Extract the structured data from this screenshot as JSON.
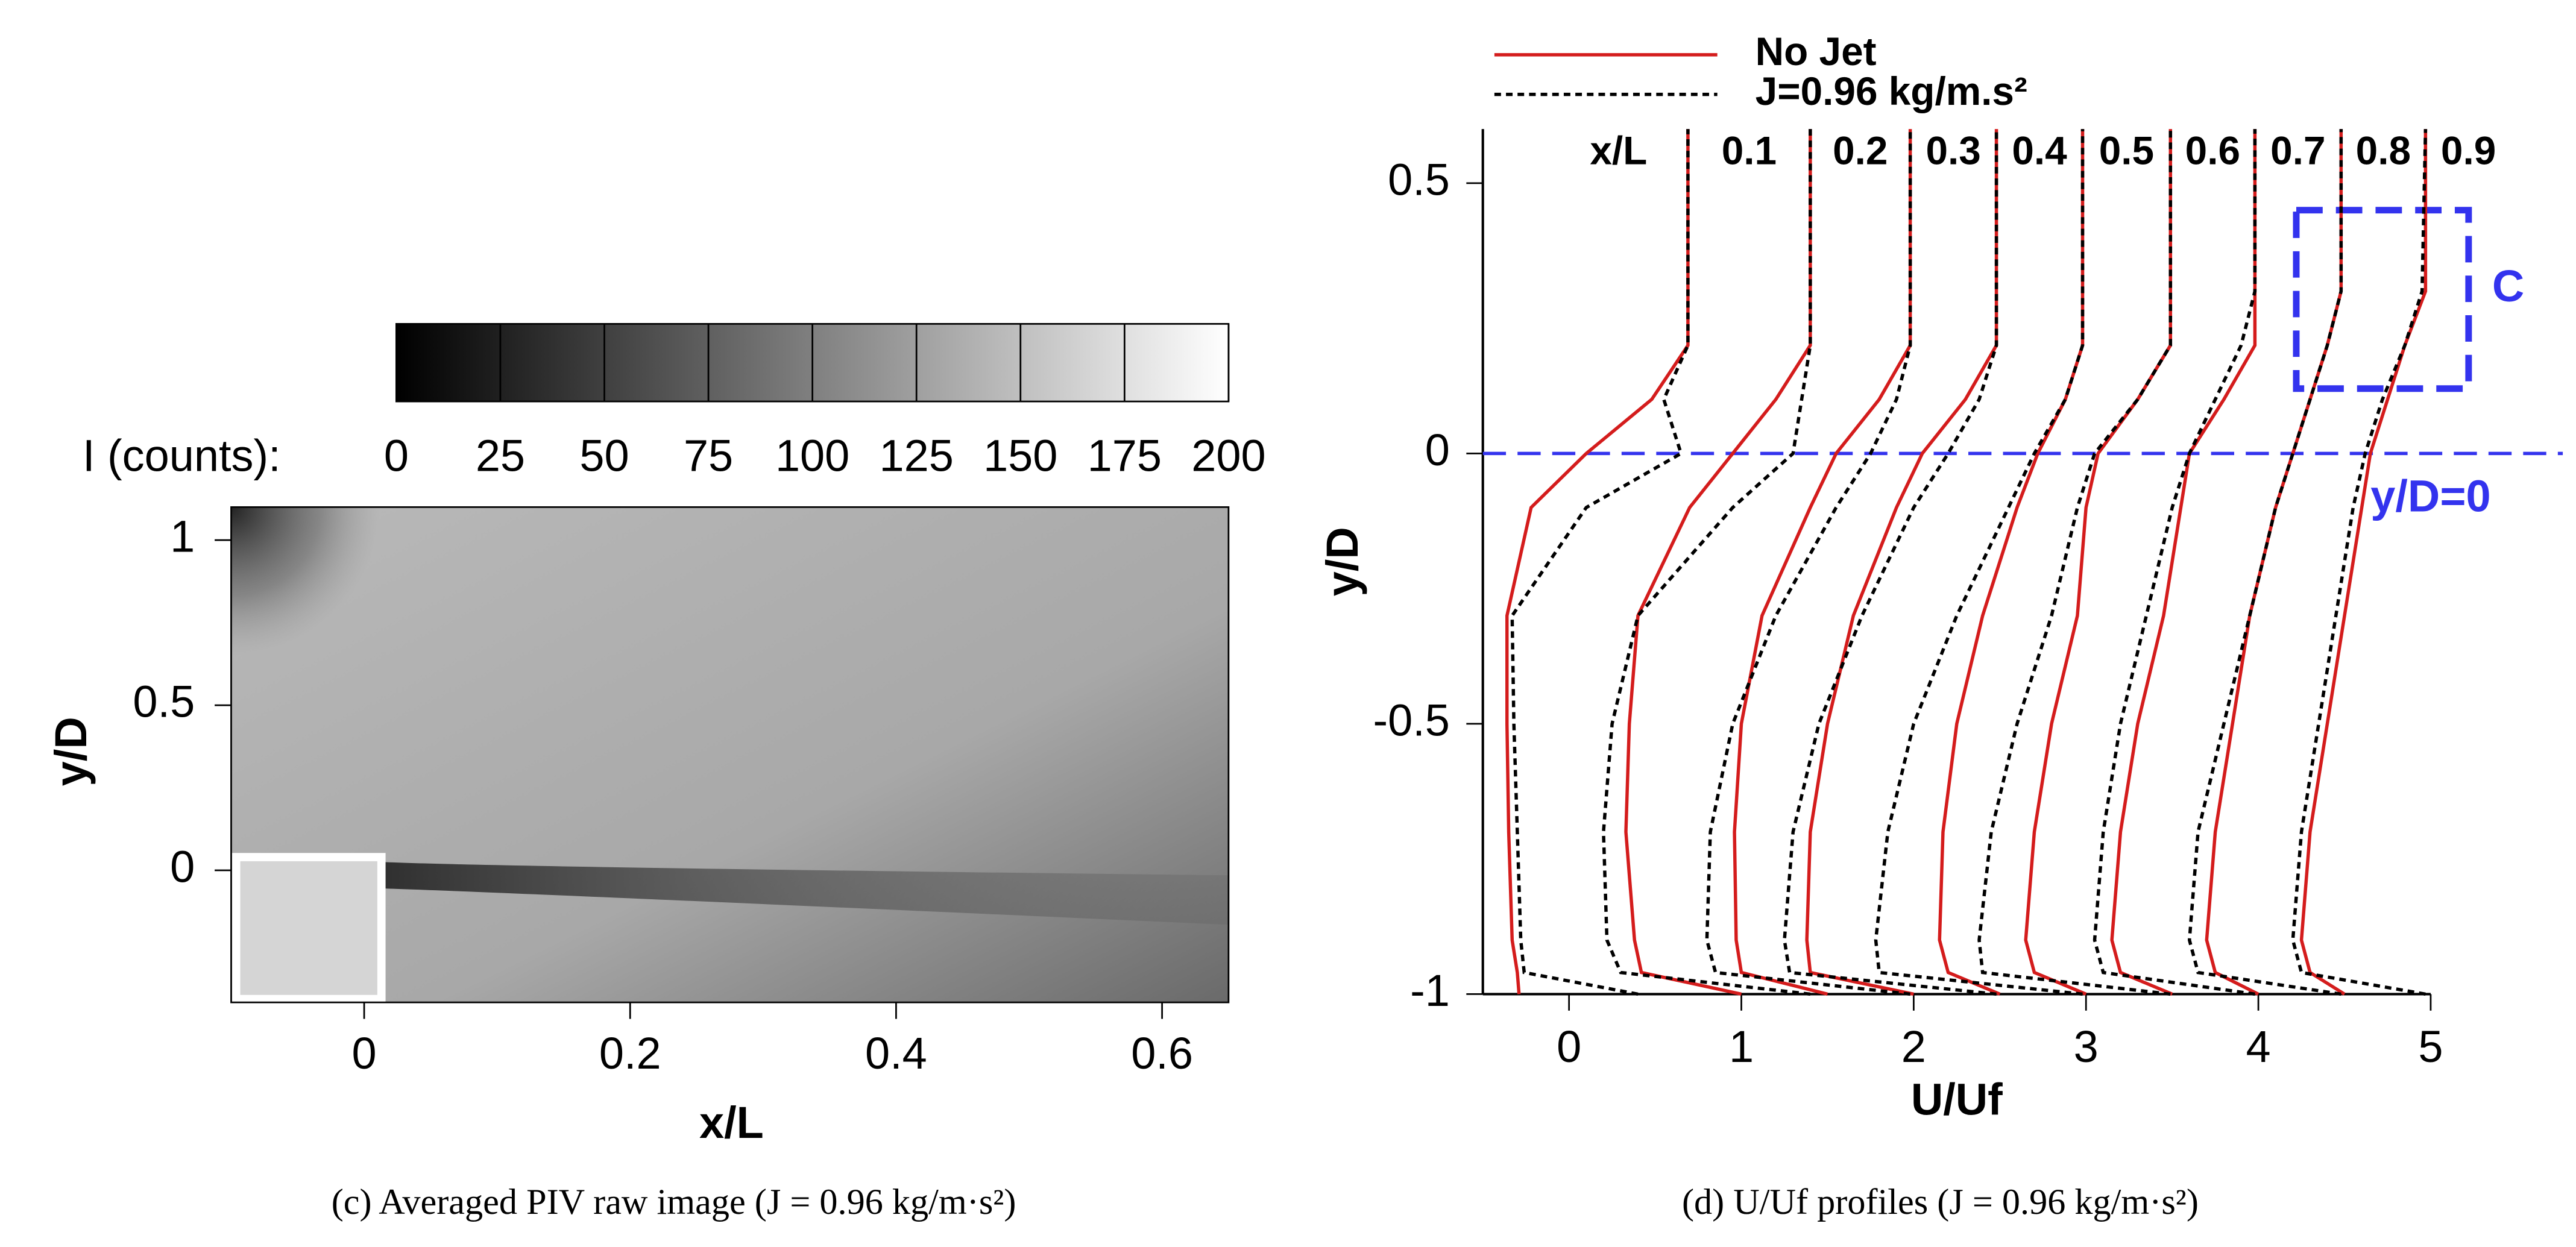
{
  "chart_data": [
    {
      "type": "image",
      "xlabel": "x/L",
      "ylabel": "y/D",
      "xlim": [
        -0.1,
        0.65
      ],
      "ylim": [
        -0.4,
        1.1
      ],
      "xticks": [
        0,
        0.2,
        0.4,
        0.6
      ],
      "yticks": [
        0,
        0.5,
        1
      ],
      "colorbar": {
        "label": "I (counts):",
        "lim": [
          0,
          200
        ],
        "ticks": [
          0,
          25,
          50,
          75,
          100,
          125,
          150,
          175,
          200
        ]
      },
      "caption": "(c) Averaged PIV raw image (J = 0.96  kg/m·s²)"
    },
    {
      "type": "profiles",
      "xlabel": "U/Uf",
      "ylabel": "y/D",
      "xlim": [
        -0.5,
        5
      ],
      "ylim": [
        -1,
        0.6
      ],
      "xticks": [
        0,
        1,
        2,
        3,
        4,
        5
      ],
      "yticks": [
        -1,
        -0.5,
        0,
        0.5
      ],
      "station_title": "x/L",
      "stations": [
        "0.1",
        "0.2",
        "0.3",
        "0.4",
        "0.5",
        "0.6",
        "0.7",
        "0.8",
        "0.9"
      ],
      "y": [
        -1,
        -0.96,
        -0.9,
        -0.7,
        -0.5,
        -0.3,
        -0.1,
        0,
        0.1,
        0.2,
        0.3,
        0.6
      ],
      "series": [
        {
          "name": "No Jet",
          "color": "#d41c1c",
          "dashed": false,
          "profiles": [
            [
              -0.29,
              -0.3,
              -0.33,
              -0.35,
              -0.36,
              -0.36,
              -0.22,
              0.1,
              0.48,
              0.69,
              0.69,
              0.69
            ],
            [
              1.0,
              0.42,
              0.38,
              0.33,
              0.35,
              0.4,
              0.7,
              0.95,
              1.2,
              1.4,
              1.4,
              1.4
            ],
            [
              1.5,
              1.0,
              0.97,
              0.96,
              1.0,
              1.12,
              1.4,
              1.55,
              1.8,
              1.98,
              1.98,
              1.98
            ],
            [
              2.0,
              1.4,
              1.38,
              1.4,
              1.5,
              1.65,
              1.9,
              2.05,
              2.3,
              2.48,
              2.48,
              2.48
            ],
            [
              2.5,
              2.2,
              2.15,
              2.17,
              2.25,
              2.4,
              2.6,
              2.72,
              2.88,
              2.98,
              2.98,
              2.98
            ],
            [
              3.0,
              2.7,
              2.65,
              2.7,
              2.8,
              2.95,
              3.0,
              3.07,
              3.3,
              3.49,
              3.49,
              3.49
            ],
            [
              3.5,
              3.2,
              3.15,
              3.2,
              3.3,
              3.45,
              3.55,
              3.6,
              3.8,
              3.98,
              3.98,
              3.98
            ],
            [
              4.0,
              3.75,
              3.7,
              3.75,
              3.85,
              3.95,
              4.1,
              4.2,
              4.3,
              4.4,
              4.48,
              4.48
            ],
            [
              4.5,
              4.3,
              4.25,
              4.3,
              4.4,
              4.5,
              4.6,
              4.65,
              4.75,
              4.85,
              4.97,
              4.97
            ]
          ]
        },
        {
          "name": "J=0.96 kg/m.s²",
          "color": "#000000",
          "dashed": true,
          "profiles": [
            [
              0.4,
              -0.26,
              -0.28,
              -0.3,
              -0.32,
              -0.33,
              0.1,
              0.65,
              0.55,
              0.69,
              0.69,
              0.69
            ],
            [
              1.4,
              0.3,
              0.22,
              0.2,
              0.25,
              0.4,
              0.95,
              1.3,
              1.35,
              1.4,
              1.4,
              1.4
            ],
            [
              1.98,
              0.85,
              0.8,
              0.82,
              0.95,
              1.2,
              1.55,
              1.75,
              1.9,
              1.98,
              1.98,
              1.98
            ],
            [
              2.48,
              1.28,
              1.25,
              1.3,
              1.45,
              1.7,
              2.0,
              2.2,
              2.38,
              2.48,
              2.48,
              2.48
            ],
            [
              2.98,
              1.8,
              1.78,
              1.85,
              2.0,
              2.25,
              2.55,
              2.7,
              2.88,
              2.98,
              2.98,
              2.98
            ],
            [
              3.49,
              2.4,
              2.38,
              2.45,
              2.6,
              2.8,
              2.95,
              3.05,
              3.3,
              3.49,
              3.49,
              3.49
            ],
            [
              3.98,
              3.1,
              3.05,
              3.1,
              3.2,
              3.35,
              3.5,
              3.6,
              3.75,
              3.9,
              3.98,
              3.98
            ],
            [
              4.48,
              3.65,
              3.6,
              3.65,
              3.8,
              3.95,
              4.1,
              4.2,
              4.3,
              4.4,
              4.48,
              4.48
            ],
            [
              4.97,
              4.25,
              4.2,
              4.25,
              4.35,
              4.45,
              4.55,
              4.62,
              4.72,
              4.85,
              4.95,
              4.97
            ]
          ]
        }
      ],
      "reference_line": {
        "label": "y/D=0",
        "y": 0,
        "color": "#3333ee"
      },
      "box": {
        "label": "C",
        "x": [
          4.22,
          5.22
        ],
        "y": [
          0.12,
          0.45
        ],
        "color": "#3333ee"
      },
      "caption": "(d) U/Uf profiles (J = 0.96  kg/m·s²)"
    }
  ]
}
